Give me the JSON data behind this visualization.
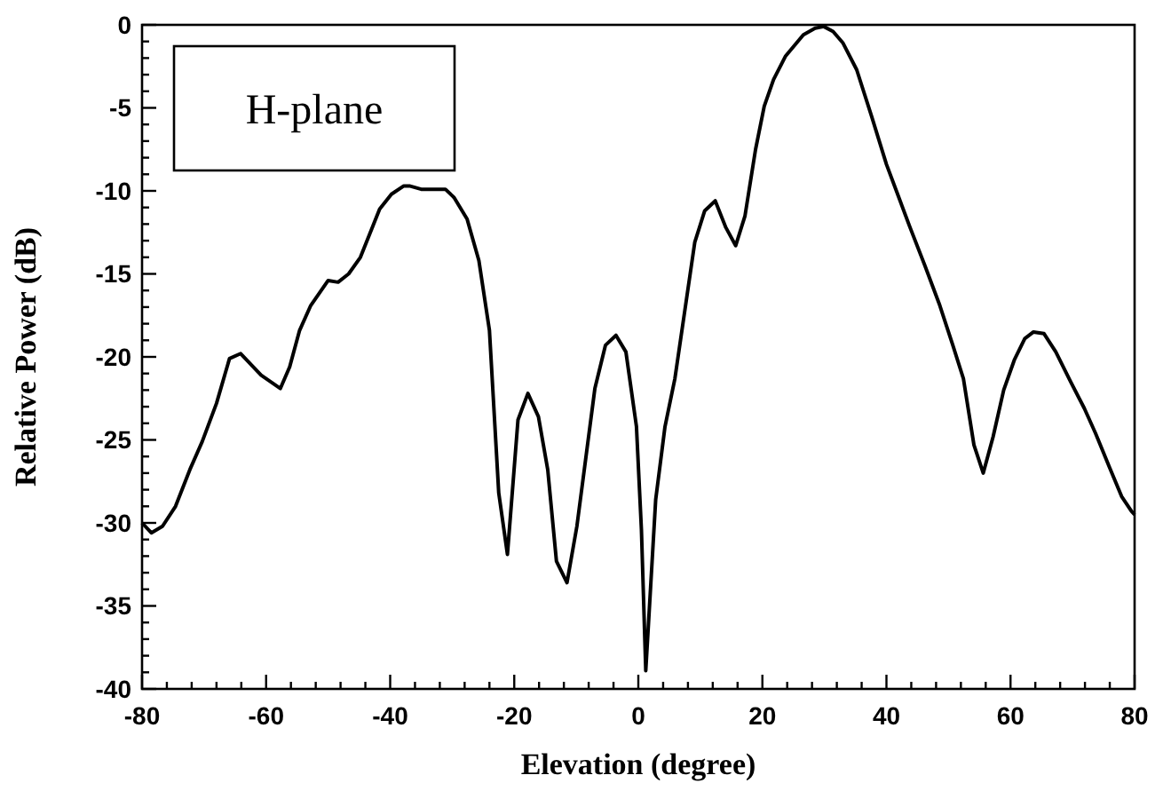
{
  "chart_data": {
    "type": "line",
    "xlabel": "Elevation (degree)",
    "ylabel": "Relative Power (dB)",
    "annotations": [
      "H-plane"
    ],
    "xlim": [
      -80,
      80
    ],
    "ylim": [
      -40,
      0
    ],
    "grid": false,
    "marker": "none",
    "line_style": "solid",
    "xticks": [
      -80,
      {
        "value": -76,
        "label": null
      },
      {
        "value": -72,
        "label": null
      },
      {
        "value": -68,
        "label": null
      },
      {
        "value": -64,
        "label": null
      },
      -60,
      {
        "value": -56,
        "label": null
      },
      {
        "value": -52,
        "label": null
      },
      {
        "value": -48,
        "label": null
      },
      {
        "value": -44,
        "label": null
      },
      -40,
      {
        "value": -36,
        "label": null
      },
      {
        "value": -32,
        "label": null
      },
      {
        "value": -28,
        "label": null
      },
      {
        "value": -24,
        "label": null
      },
      -20,
      {
        "value": -16,
        "label": null
      },
      {
        "value": -12,
        "label": null
      },
      {
        "value": -8,
        "label": null
      },
      {
        "value": -4,
        "label": null
      },
      0,
      {
        "value": 4,
        "label": null
      },
      {
        "value": 8,
        "label": null
      },
      {
        "value": 12,
        "label": null
      },
      {
        "value": 16,
        "label": null
      },
      20,
      {
        "value": 24,
        "label": null
      },
      {
        "value": 28,
        "label": null
      },
      {
        "value": 32,
        "label": null
      },
      {
        "value": 36,
        "label": null
      },
      40,
      {
        "value": 44,
        "label": null
      },
      {
        "value": 48,
        "label": null
      },
      {
        "value": 52,
        "label": null
      },
      {
        "value": 56,
        "label": null
      },
      60,
      {
        "value": 64,
        "label": null
      },
      {
        "value": 68,
        "label": null
      },
      {
        "value": 72,
        "label": null
      },
      {
        "value": 76,
        "label": null
      },
      80
    ],
    "yticks": [
      -40,
      {
        "value": -39,
        "label": null
      },
      {
        "value": -38,
        "label": null
      },
      {
        "value": -37,
        "label": null
      },
      {
        "value": -36,
        "label": null
      },
      -35,
      {
        "value": -34,
        "label": null
      },
      {
        "value": -33,
        "label": null
      },
      {
        "value": -32,
        "label": null
      },
      {
        "value": -31,
        "label": null
      },
      -30,
      {
        "value": -29,
        "label": null
      },
      {
        "value": -28,
        "label": null
      },
      {
        "value": -27,
        "label": null
      },
      {
        "value": -26,
        "label": null
      },
      -25,
      {
        "value": -24,
        "label": null
      },
      {
        "value": -23,
        "label": null
      },
      {
        "value": -22,
        "label": null
      },
      {
        "value": -21,
        "label": null
      },
      -20,
      {
        "value": -19,
        "label": null
      },
      {
        "value": -18,
        "label": null
      },
      {
        "value": -17,
        "label": null
      },
      {
        "value": -16,
        "label": null
      },
      -15,
      {
        "value": -14,
        "label": null
      },
      {
        "value": -13,
        "label": null
      },
      {
        "value": -12,
        "label": null
      },
      {
        "value": -11,
        "label": null
      },
      -10,
      {
        "value": -9,
        "label": null
      },
      {
        "value": -8,
        "label": null
      },
      {
        "value": -7,
        "label": null
      },
      {
        "value": -6,
        "label": null
      },
      -5,
      {
        "value": -4,
        "label": null
      },
      {
        "value": -3,
        "label": null
      },
      {
        "value": -2,
        "label": null
      },
      {
        "value": -1,
        "label": null
      },
      0
    ],
    "series": [
      {
        "color": "#000000",
        "x": [
          -80,
          -78.5,
          -76.7,
          -74.6,
          -72.3,
          -70.3,
          -68,
          -65.9,
          -64.1,
          -60.8,
          -57.7,
          -56.2,
          -54.6,
          -52.8,
          -50,
          -48.4,
          -46.7,
          -44.8,
          -41.7,
          -39.8,
          -37.8,
          -36.9,
          -35,
          -31.1,
          -29.7,
          -27.6,
          -25.7,
          -24,
          -22.5,
          -21.1,
          -19.4,
          -17.8,
          -16.1,
          -14.6,
          -13.2,
          -11.5,
          -9.9,
          -7,
          -5.3,
          -3.6,
          -2,
          -0.3,
          0.5,
          1.2,
          2.8,
          4.3,
          5.9,
          9.1,
          10.7,
          12.4,
          14.1,
          15.7,
          17.2,
          18.9,
          20.3,
          21.8,
          23.7,
          26.6,
          28.5,
          29.9,
          31.4,
          33,
          35.2,
          37.6,
          40,
          41.6,
          43.8,
          46.2,
          48.6,
          50.7,
          52.4,
          54.1,
          55.6,
          57.2,
          58.9,
          60.6,
          62.3,
          63.7,
          65.4,
          67.3,
          69.7,
          71.9,
          73.7,
          75.9,
          77.9,
          79.5,
          80
        ],
        "values": [
          -30,
          -30.6,
          -30.2,
          -29,
          -26.8,
          -25.1,
          -22.8,
          -20.1,
          -19.8,
          -21.1,
          -21.9,
          -20.6,
          -18.4,
          -16.9,
          -15.4,
          -15.5,
          -15,
          -14,
          -11.1,
          -10.2,
          -9.7,
          -9.7,
          -9.9,
          -9.9,
          -10.4,
          -11.7,
          -14.2,
          -18.4,
          -28.2,
          -31.9,
          -23.8,
          -22.2,
          -23.6,
          -26.8,
          -32.3,
          -33.6,
          -30.2,
          -21.9,
          -19.3,
          -18.7,
          -19.7,
          -24.2,
          -30.4,
          -38.9,
          -28.6,
          -24.2,
          -21.3,
          -13.1,
          -11.2,
          -10.6,
          -12.2,
          -13.3,
          -11.5,
          -7.5,
          -4.9,
          -3.3,
          -1.9,
          -0.6,
          -0.2,
          -0.1,
          -0.4,
          -1.1,
          -2.7,
          -5.5,
          -8.4,
          -10,
          -12.2,
          -14.5,
          -16.9,
          -19.3,
          -21.3,
          -25.3,
          -27,
          -24.8,
          -22,
          -20.2,
          -18.9,
          -18.5,
          -18.6,
          -19.7,
          -21.5,
          -23.1,
          -24.6,
          -26.6,
          -28.4,
          -29.3,
          -29.5
        ]
      }
    ]
  }
}
